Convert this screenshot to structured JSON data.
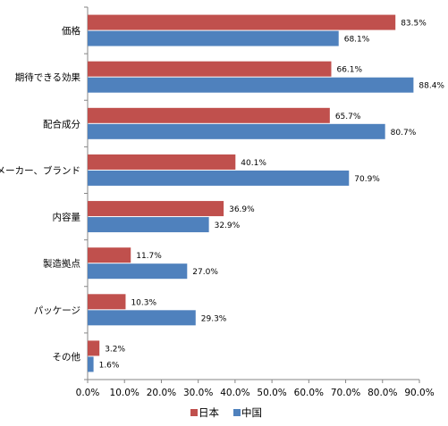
{
  "chart_data": {
    "type": "bar",
    "orientation": "horizontal",
    "title": "",
    "xlabel": "",
    "ylabel": "",
    "categories": [
      "価格",
      "期待できる効果",
      "配合成分",
      "メーカー、ブランド",
      "内容量",
      "製造拠点",
      "パッケージ",
      "その他"
    ],
    "series": [
      {
        "name": "日本",
        "color": "#C0504D",
        "values": [
          83.5,
          66.1,
          65.7,
          40.1,
          36.9,
          11.7,
          10.3,
          3.2
        ],
        "labels": [
          "83.5%",
          "66.1%",
          "65.7%",
          "40.1%",
          "36.9%",
          "11.7%",
          "10.3%",
          "3.2%"
        ]
      },
      {
        "name": "中国",
        "color": "#4F81BD",
        "values": [
          68.1,
          88.4,
          80.7,
          70.9,
          32.9,
          27.0,
          29.3,
          1.6
        ],
        "labels": [
          "68.1%",
          "88.4%",
          "80.7%",
          "70.9%",
          "32.9%",
          "27.0%",
          "29.3%",
          "1.6%"
        ]
      }
    ],
    "xlim": [
      0,
      90
    ],
    "x_ticks": [
      0,
      10,
      20,
      30,
      40,
      50,
      60,
      70,
      80,
      90
    ],
    "x_tick_labels": [
      "0.0%",
      "10.0%",
      "20.0%",
      "30.0%",
      "40.0%",
      "50.0%",
      "60.0%",
      "70.0%",
      "80.0%",
      "90.0%"
    ],
    "grid": false,
    "legend_position": "bottom"
  }
}
